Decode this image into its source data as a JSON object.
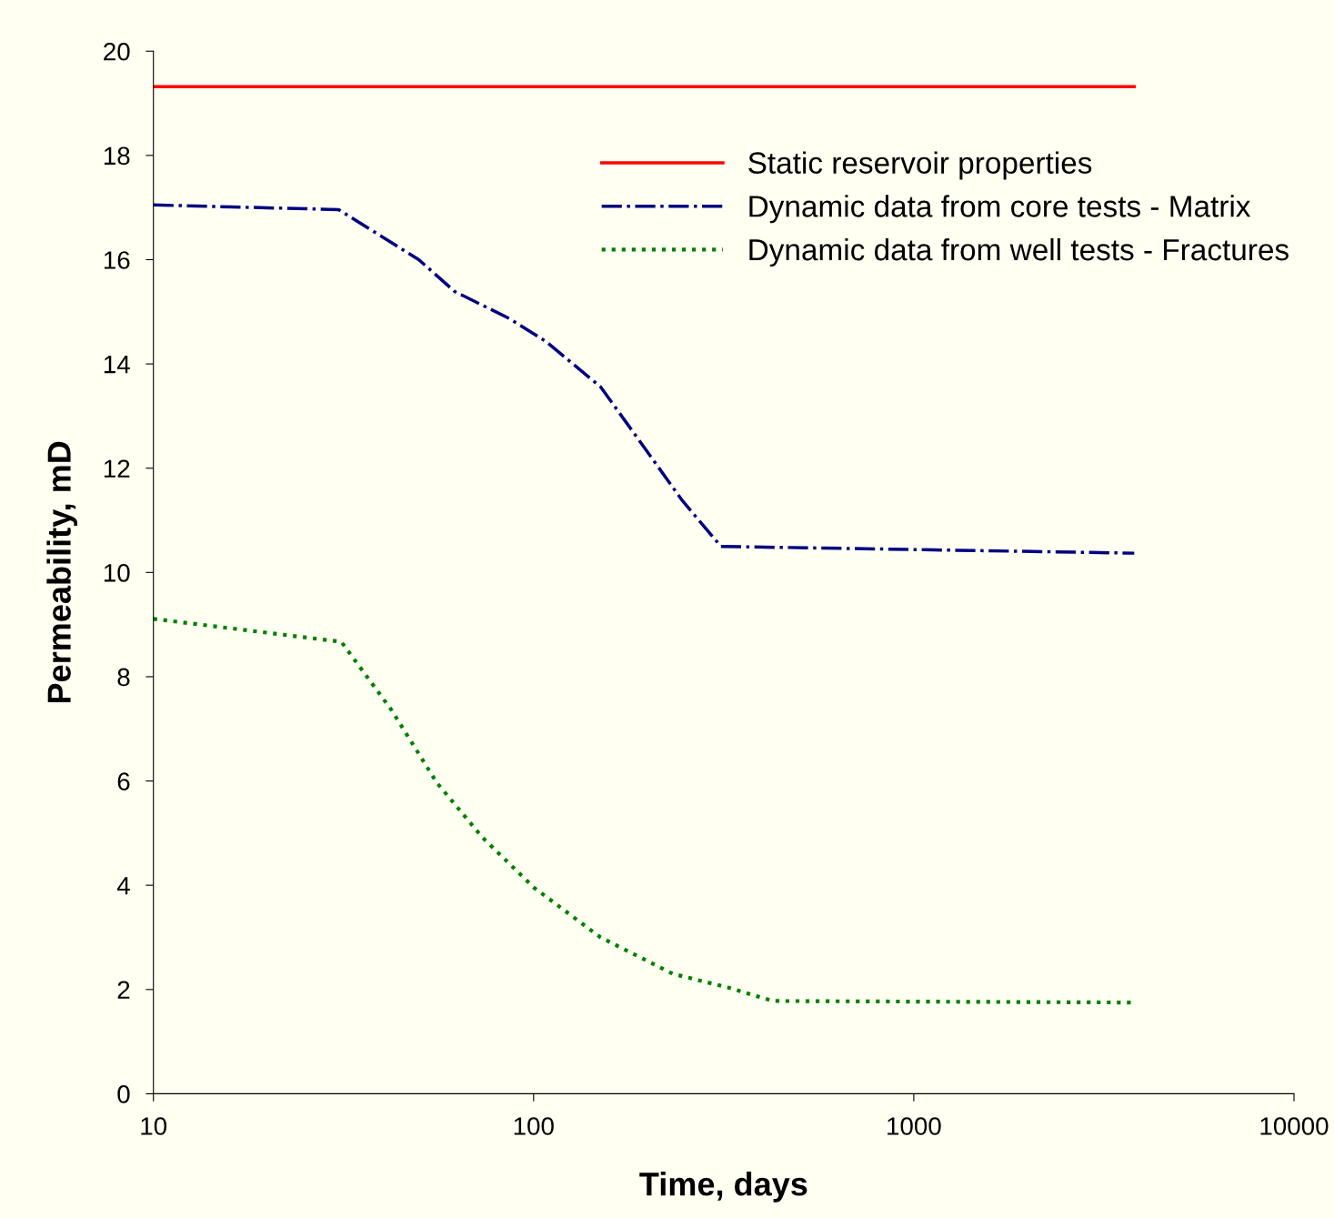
{
  "chart_data": {
    "type": "line",
    "xlabel": "Time, days",
    "ylabel": "Permeability, mD",
    "log": "x",
    "grid": false,
    "legend": "top right",
    "marker": "none",
    "xlim": [
      10,
      10000
    ],
    "xticks": [
      10,
      100,
      1000,
      10000
    ],
    "ylim": [
      0,
      20
    ],
    "yticks": [
      0,
      2,
      4,
      6,
      8,
      10,
      12,
      14,
      16,
      18,
      20
    ],
    "series": [
      {
        "name": "Static reservoir properties",
        "color": "#ff0000",
        "line_style": "solid",
        "x": [
          10,
          3800
        ],
        "values": [
          19.32,
          19.32
        ]
      },
      {
        "name": "Dynamic data from core tests - Matrix",
        "color": "#000080",
        "line_style": "dashdot",
        "x": [
          10,
          30.7,
          49.9,
          62,
          86.4,
          107.8,
          150,
          186.7,
          246,
          311,
          3800
        ],
        "values": [
          17.05,
          16.96,
          16.0,
          15.39,
          14.87,
          14.43,
          13.56,
          12.6,
          11.38,
          10.5,
          10.37
        ]
      },
      {
        "name": "Dynamic data from well tests - Fractures",
        "color": "#008000",
        "line_style": "dotted",
        "x": [
          10,
          31.2,
          42.3,
          55.6,
          73.3,
          100,
          150,
          232.6,
          323.7,
          426,
          3800
        ],
        "values": [
          9.11,
          8.67,
          7.36,
          5.97,
          4.92,
          3.96,
          3.0,
          2.3,
          2.04,
          1.78,
          1.75
        ]
      }
    ]
  }
}
